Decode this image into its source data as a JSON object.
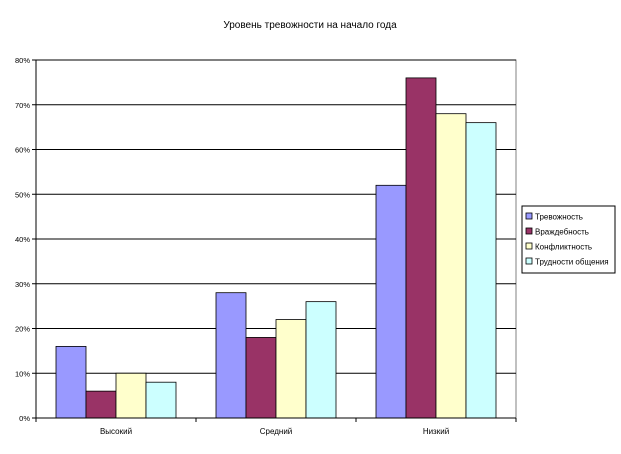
{
  "chart_data": {
    "type": "bar",
    "title": "Уровень тревожности на начало года",
    "categories": [
      "Высокий",
      "Средний",
      "Низкий"
    ],
    "series": [
      {
        "name": "Тревожность",
        "color": "#9999ff",
        "values": [
          16,
          28,
          52
        ]
      },
      {
        "name": "Враждебность",
        "color": "#993366",
        "values": [
          6,
          18,
          76
        ]
      },
      {
        "name": "Конфликтность",
        "color": "#ffffcc",
        "values": [
          10,
          22,
          68
        ]
      },
      {
        "name": "Трудности общения",
        "color": "#ccffff",
        "values": [
          8,
          26,
          66
        ]
      }
    ],
    "ylim": [
      0,
      80
    ],
    "ystep": 10,
    "yticks": [
      "0%",
      "10%",
      "20%",
      "30%",
      "40%",
      "50%",
      "60%",
      "70%",
      "80%"
    ],
    "grid": true,
    "legend": "right",
    "xlabel": "",
    "ylabel": ""
  }
}
